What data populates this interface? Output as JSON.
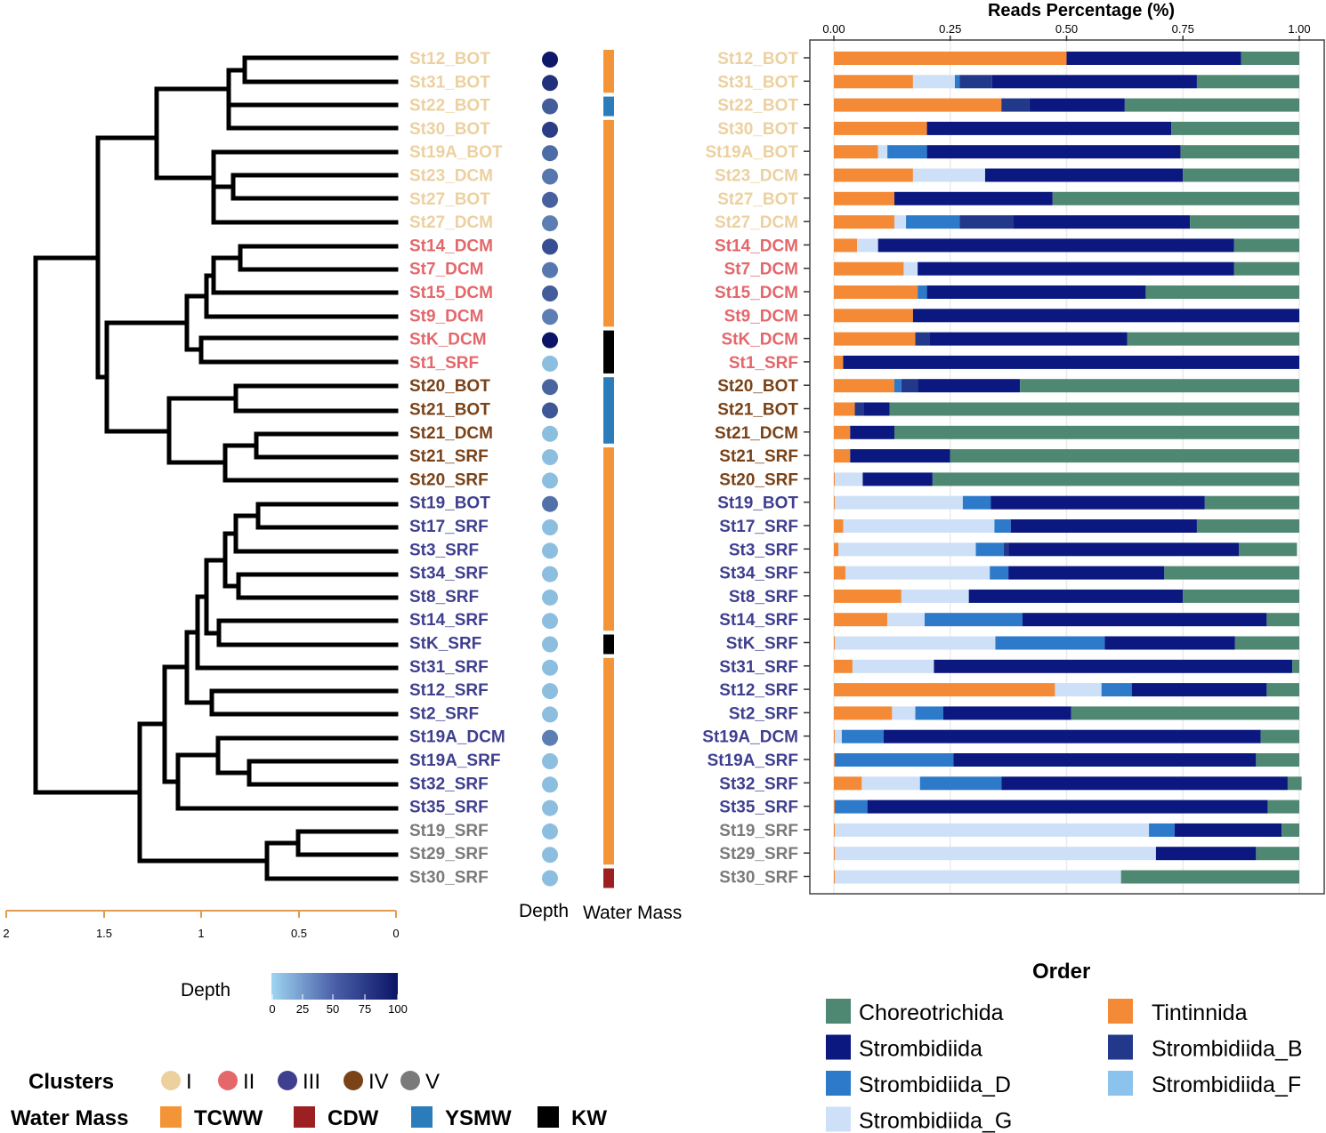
{
  "chart_data": {
    "type": "bar",
    "stacked": true,
    "orientation": "horizontal",
    "title": "Reads Percentage (%)",
    "xlim": [
      0,
      1
    ],
    "x_ticks": [
      "0.00",
      "0.25",
      "0.50",
      "0.75",
      "1.00"
    ],
    "order_title": "Order",
    "samples": [
      "St12_BOT",
      "St31_BOT",
      "St22_BOT",
      "St30_BOT",
      "St19A_BOT",
      "St23_DCM",
      "St27_BOT",
      "St27_DCM",
      "St14_DCM",
      "St7_DCM",
      "St15_DCM",
      "St9_DCM",
      "StK_DCM",
      "St1_SRF",
      "St20_BOT",
      "St21_BOT",
      "St21_DCM",
      "St21_SRF",
      "St20_SRF",
      "St19_BOT",
      "St17_SRF",
      "St3_SRF",
      "St34_SRF",
      "St8_SRF",
      "St14_SRF",
      "StK_SRF",
      "St31_SRF",
      "St12_SRF",
      "St2_SRF",
      "St19A_DCM",
      "St19A_SRF",
      "St32_SRF",
      "St35_SRF",
      "St19_SRF",
      "St29_SRF",
      "St30_SRF"
    ],
    "clusters": [
      "I",
      "I",
      "I",
      "I",
      "I",
      "I",
      "I",
      "I",
      "II",
      "II",
      "II",
      "II",
      "II",
      "II",
      "IV",
      "IV",
      "IV",
      "IV",
      "IV",
      "III",
      "III",
      "III",
      "III",
      "III",
      "III",
      "III",
      "III",
      "III",
      "III",
      "III",
      "III",
      "III",
      "III",
      "V",
      "V",
      "V"
    ],
    "depth": [
      98,
      85,
      62,
      78,
      55,
      48,
      60,
      45,
      70,
      48,
      62,
      45,
      100,
      12,
      58,
      65,
      12,
      12,
      12,
      52,
      12,
      12,
      12,
      12,
      12,
      12,
      12,
      12,
      12,
      45,
      12,
      12,
      12,
      12,
      12,
      12
    ],
    "water_mass": [
      "TCWW",
      "TCWW",
      "YSMW",
      "TCWW",
      "TCWW",
      "TCWW",
      "TCWW",
      "TCWW",
      "TCWW",
      "TCWW",
      "TCWW",
      "TCWW",
      "KW",
      "KW",
      "YSMW",
      "YSMW",
      "YSMW",
      "TCWW",
      "TCWW",
      "TCWW",
      "TCWW",
      "TCWW",
      "TCWW",
      "TCWW",
      "TCWW",
      "KW",
      "TCWW",
      "TCWW",
      "TCWW",
      "TCWW",
      "TCWW",
      "TCWW",
      "TCWW",
      "TCWW",
      "TCWW",
      "CDW"
    ],
    "series": [
      {
        "name": "Tintinnida",
        "values": [
          0.5,
          0.17,
          0.36,
          0.2,
          0.095,
          0.17,
          0.13,
          0.13,
          0.05,
          0.15,
          0.18,
          0.17,
          0.175,
          0.02,
          0.13,
          0.045,
          0.035,
          0.035,
          0.002,
          0.002,
          0.02,
          0.01,
          0.025,
          0.145,
          0.115,
          0.002,
          0.04,
          0.475,
          0.125,
          0.002,
          0.002,
          0.06,
          0.002,
          0.002,
          0.002,
          0.002
        ]
      },
      {
        "name": "Strombidiida_G",
        "values": [
          0,
          0.09,
          0,
          0,
          0.02,
          0.155,
          0,
          0.025,
          0.045,
          0.03,
          0,
          0,
          0,
          0,
          0,
          0,
          0,
          0,
          0.06,
          0.275,
          0.325,
          0.295,
          0.31,
          0.145,
          0.08,
          0.345,
          0.175,
          0.1,
          0.05,
          0.015,
          0,
          0.125,
          0,
          0.675,
          0.69,
          0.615
        ]
      },
      {
        "name": "Strombidiida_D",
        "values": [
          0,
          0.01,
          0,
          0,
          0.085,
          0,
          0,
          0.115,
          0,
          0,
          0.02,
          0,
          0,
          0,
          0.015,
          0,
          0,
          0,
          0,
          0.06,
          0.035,
          0.06,
          0.04,
          0,
          0.21,
          0.235,
          0,
          0.065,
          0.06,
          0.09,
          0.255,
          0.175,
          0.07,
          0.055,
          0,
          0
        ]
      },
      {
        "name": "Strombidiida_B",
        "values": [
          0,
          0.07,
          0.06,
          0,
          0,
          0,
          0,
          0.115,
          0,
          0,
          0,
          0,
          0.03,
          0,
          0.035,
          0.02,
          0,
          0,
          0,
          0,
          0,
          0.01,
          0,
          0,
          0,
          0,
          0,
          0,
          0,
          0,
          0,
          0,
          0,
          0,
          0,
          0
        ]
      },
      {
        "name": "Strombidiida",
        "values": [
          0.375,
          0.44,
          0.205,
          0.525,
          0.545,
          0.425,
          0.34,
          0.38,
          0.765,
          0.68,
          0.47,
          0.83,
          0.425,
          0.98,
          0.22,
          0.055,
          0.095,
          0.215,
          0.15,
          0.46,
          0.4,
          0.495,
          0.335,
          0.46,
          0.525,
          0.28,
          0.77,
          0.29,
          0.275,
          0.81,
          0.65,
          0.615,
          0.86,
          0.23,
          0.215,
          0
        ]
      },
      {
        "name": "Choreotrichida",
        "values": [
          0.125,
          0.22,
          0.375,
          0.275,
          0.255,
          0.25,
          0.53,
          0.235,
          0.14,
          0.14,
          0.33,
          0,
          0.37,
          0,
          0.6,
          0.88,
          0.87,
          0.75,
          0.788,
          0.203,
          0.22,
          0.125,
          0.29,
          0.25,
          0.07,
          0.138,
          0.015,
          0.07,
          0.49,
          0.083,
          0.093,
          0.03,
          0.068,
          0.038,
          0.093,
          0.383
        ]
      }
    ],
    "legend_left": [
      "Choreotrichida",
      "Strombidiida",
      "Strombidiida_D",
      "Strombidiida_G"
    ],
    "legend_right": [
      "Tintinnida",
      "Strombidiida_B",
      "Strombidiida_F"
    ],
    "dendrogram_axis_ticks": [
      "2",
      "1.5",
      "1",
      "0.5",
      "0"
    ],
    "column_labels": {
      "depth": "Depth",
      "water_mass": "Water Mass"
    },
    "depth_legend": {
      "title": "Depth",
      "ticks": [
        "0",
        "25",
        "50",
        "75",
        "100"
      ]
    },
    "clusters_legend": {
      "title": "Clusters",
      "items": [
        "I",
        "II",
        "III",
        "IV",
        "V"
      ]
    },
    "water_mass_legend": {
      "title": "Water Mass",
      "items": [
        "TCWW",
        "CDW",
        "YSMW",
        "KW"
      ]
    }
  },
  "colors": {
    "Choreotrichida": "#4e8873",
    "Strombidiida": "#0b1880",
    "Strombidiida_D": "#2d7acb",
    "Strombidiida_G": "#cde0f7",
    "Tintinnida": "#f48a35",
    "Strombidiida_B": "#22388a",
    "Strombidiida_F": "#8cc3ec",
    "cluster_I": "#ecd19f",
    "cluster_II": "#e4676a",
    "cluster_III": "#3f3f90",
    "cluster_IV": "#7a4217",
    "cluster_V": "#7a7a7a",
    "TCWW": "#f39436",
    "CDW": "#9c1f21",
    "YSMW": "#2a7dba",
    "KW": "#000000",
    "depth_low": "#9ed5f1",
    "depth_high": "#0b1466",
    "axis_orange": "#e29a52"
  }
}
